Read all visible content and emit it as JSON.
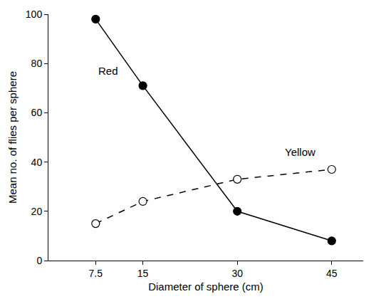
{
  "chart_data": {
    "type": "line",
    "x_label": "Diameter of sphere (cm)",
    "y_label": "Mean no. of flies per sphere",
    "x": [
      7.5,
      15,
      30,
      45
    ],
    "series": [
      {
        "name": "Red",
        "color": "#000000",
        "marker": "circle",
        "line_style": "solid",
        "values": [
          98,
          71,
          20,
          8
        ]
      },
      {
        "name": "Yellow",
        "color": "#000000",
        "marker": "circle-open",
        "line_style": "dash",
        "values": [
          15,
          24,
          33,
          37
        ]
      }
    ],
    "xlim": [
      0,
      50
    ],
    "xticks": [
      7.5,
      15,
      30,
      45
    ],
    "ylim": [
      0,
      100
    ],
    "yticks": [
      0,
      20,
      40,
      60,
      80,
      100
    ],
    "grid": false
  }
}
